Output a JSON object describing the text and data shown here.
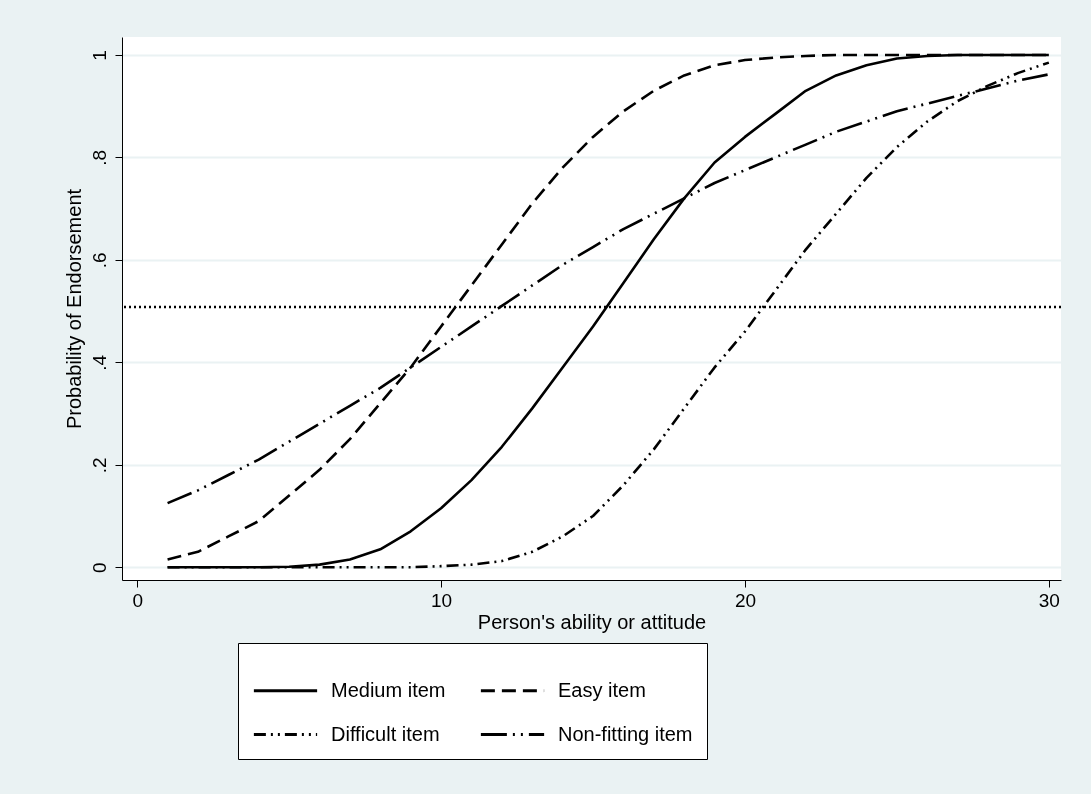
{
  "chart_data": {
    "type": "line",
    "xlabel": "Person's ability or attitude",
    "ylabel": "Probability of Endorsement",
    "x": [
      1,
      2,
      3,
      4,
      5,
      6,
      7,
      8,
      9,
      10,
      11,
      12,
      13,
      14,
      15,
      16,
      17,
      18,
      19,
      20,
      21,
      22,
      23,
      24,
      25,
      26,
      27,
      28,
      29,
      30
    ],
    "series": [
      {
        "name": "Medium item",
        "color": "#000000",
        "line_style": "solid",
        "values": [
          0,
          0,
          0,
          0,
          0.001,
          0.005,
          0.015,
          0.035,
          0.07,
          0.115,
          0.17,
          0.235,
          0.31,
          0.39,
          0.47,
          0.555,
          0.64,
          0.72,
          0.79,
          0.84,
          0.885,
          0.93,
          0.96,
          0.98,
          0.993,
          0.998,
          1,
          1,
          1,
          1
        ]
      },
      {
        "name": "Easy item",
        "color": "#000000",
        "line_style": "dashed",
        "values": [
          0.015,
          0.03,
          0.06,
          0.09,
          0.14,
          0.19,
          0.25,
          0.32,
          0.39,
          0.47,
          0.55,
          0.63,
          0.71,
          0.78,
          0.84,
          0.89,
          0.93,
          0.96,
          0.98,
          0.99,
          0.995,
          0.998,
          1,
          1,
          1,
          1,
          1,
          1,
          1,
          1
        ]
      },
      {
        "name": "Difficult item",
        "color": "#000000",
        "line_style": "dashdot",
        "values": [
          0,
          0,
          0,
          0,
          0,
          0,
          0,
          0,
          0,
          0.002,
          0.005,
          0.012,
          0.03,
          0.06,
          0.1,
          0.16,
          0.23,
          0.31,
          0.39,
          0.46,
          0.54,
          0.62,
          0.69,
          0.76,
          0.82,
          0.87,
          0.91,
          0.94,
          0.965,
          0.985
        ]
      },
      {
        "name": "Non-fitting item",
        "color": "#000000",
        "line_style": "longdashdot",
        "values": [
          0.125,
          0.15,
          0.18,
          0.21,
          0.245,
          0.28,
          0.315,
          0.35,
          0.39,
          0.43,
          0.47,
          0.51,
          0.55,
          0.59,
          0.625,
          0.66,
          0.69,
          0.72,
          0.75,
          0.775,
          0.8,
          0.825,
          0.85,
          0.87,
          0.89,
          0.905,
          0.92,
          0.935,
          0.95,
          0.962
        ]
      }
    ],
    "ref_lines": [
      {
        "axis": "y",
        "value": 0.508,
        "line_style": "dotted",
        "color": "#000000"
      }
    ],
    "xlim": [
      -0.5,
      30.4
    ],
    "ylim": [
      -0.025,
      1.035
    ],
    "xticks": [
      0,
      10,
      20,
      30
    ],
    "yticks": [
      {
        "value": 0,
        "label": "0"
      },
      {
        "value": 0.2,
        "label": ".2"
      },
      {
        "value": 0.4,
        "label": ".4"
      },
      {
        "value": 0.6,
        "label": ".6"
      },
      {
        "value": 0.8,
        "label": ".8"
      },
      {
        "value": 1,
        "label": "1"
      }
    ],
    "grid": "y",
    "legend": "bottom",
    "marker": "none"
  }
}
